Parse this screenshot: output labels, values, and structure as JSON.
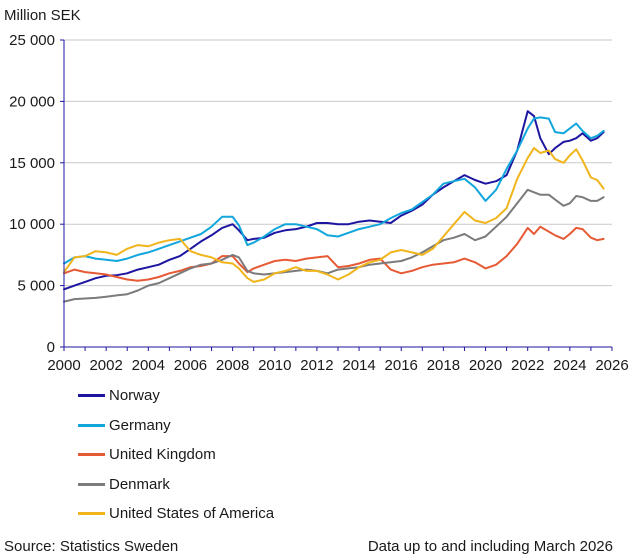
{
  "chart_data": {
    "type": "line",
    "unit_label": "Million SEK",
    "xlim": [
      2000,
      2026
    ],
    "ylim": [
      0,
      25000
    ],
    "x_ticks": [
      2000,
      2002,
      2004,
      2006,
      2008,
      2010,
      2012,
      2014,
      2016,
      2018,
      2020,
      2022,
      2024,
      2026
    ],
    "y_ticks": [
      0,
      5000,
      10000,
      15000,
      20000,
      25000
    ],
    "y_tick_labels": [
      "0",
      "5 000",
      "10 000",
      "15 000",
      "20 000",
      "25 000"
    ],
    "grid": "horizontal",
    "legend_position": "bottom-left",
    "series": [
      {
        "name": "Norway",
        "color": "#1e15a0",
        "points": [
          [
            2000,
            4700
          ],
          [
            2000.5,
            5000
          ],
          [
            2001,
            5300
          ],
          [
            2001.5,
            5600
          ],
          [
            2002,
            5800
          ],
          [
            2002.5,
            5850
          ],
          [
            2003,
            6000
          ],
          [
            2003.5,
            6300
          ],
          [
            2004,
            6500
          ],
          [
            2004.5,
            6700
          ],
          [
            2005,
            7100
          ],
          [
            2005.5,
            7400
          ],
          [
            2006,
            8000
          ],
          [
            2006.5,
            8600
          ],
          [
            2007,
            9100
          ],
          [
            2007.5,
            9700
          ],
          [
            2008,
            10000
          ],
          [
            2008.3,
            9500
          ],
          [
            2008.7,
            8700
          ],
          [
            2009,
            8800
          ],
          [
            2009.5,
            8900
          ],
          [
            2010,
            9300
          ],
          [
            2010.5,
            9500
          ],
          [
            2011,
            9600
          ],
          [
            2011.5,
            9800
          ],
          [
            2012,
            10100
          ],
          [
            2012.5,
            10100
          ],
          [
            2013,
            10000
          ],
          [
            2013.5,
            10000
          ],
          [
            2014,
            10200
          ],
          [
            2014.5,
            10300
          ],
          [
            2015,
            10200
          ],
          [
            2015.5,
            10100
          ],
          [
            2016,
            10700
          ],
          [
            2016.5,
            11100
          ],
          [
            2017,
            11600
          ],
          [
            2017.5,
            12400
          ],
          [
            2018,
            13000
          ],
          [
            2018.5,
            13500
          ],
          [
            2019,
            14000
          ],
          [
            2019.5,
            13600
          ],
          [
            2020,
            13300
          ],
          [
            2020.5,
            13500
          ],
          [
            2021,
            14000
          ],
          [
            2021.5,
            16000
          ],
          [
            2022,
            19200
          ],
          [
            2022.3,
            18800
          ],
          [
            2022.6,
            17000
          ],
          [
            2023,
            15700
          ],
          [
            2023.3,
            16200
          ],
          [
            2023.7,
            16700
          ],
          [
            2024,
            16800
          ],
          [
            2024.3,
            17000
          ],
          [
            2024.6,
            17400
          ],
          [
            2025,
            16800
          ],
          [
            2025.3,
            17000
          ],
          [
            2025.6,
            17500
          ]
        ]
      },
      {
        "name": "Germany",
        "color": "#11a6dc",
        "points": [
          [
            2000,
            6800
          ],
          [
            2000.5,
            7300
          ],
          [
            2001,
            7400
          ],
          [
            2001.5,
            7200
          ],
          [
            2002,
            7100
          ],
          [
            2002.5,
            7000
          ],
          [
            2003,
            7200
          ],
          [
            2003.5,
            7500
          ],
          [
            2004,
            7700
          ],
          [
            2004.5,
            8000
          ],
          [
            2005,
            8300
          ],
          [
            2005.5,
            8600
          ],
          [
            2006,
            8900
          ],
          [
            2006.5,
            9200
          ],
          [
            2007,
            9800
          ],
          [
            2007.5,
            10600
          ],
          [
            2008,
            10600
          ],
          [
            2008.3,
            9900
          ],
          [
            2008.7,
            8300
          ],
          [
            2009,
            8500
          ],
          [
            2009.5,
            9000
          ],
          [
            2010,
            9600
          ],
          [
            2010.5,
            10000
          ],
          [
            2011,
            10000
          ],
          [
            2011.5,
            9800
          ],
          [
            2012,
            9600
          ],
          [
            2012.5,
            9100
          ],
          [
            2013,
            9000
          ],
          [
            2013.5,
            9300
          ],
          [
            2014,
            9600
          ],
          [
            2014.5,
            9800
          ],
          [
            2015,
            10000
          ],
          [
            2015.5,
            10500
          ],
          [
            2016,
            10900
          ],
          [
            2016.5,
            11200
          ],
          [
            2017,
            11800
          ],
          [
            2017.5,
            12400
          ],
          [
            2018,
            13300
          ],
          [
            2018.5,
            13500
          ],
          [
            2019,
            13700
          ],
          [
            2019.5,
            13000
          ],
          [
            2020,
            11900
          ],
          [
            2020.5,
            12800
          ],
          [
            2021,
            14500
          ],
          [
            2021.5,
            16000
          ],
          [
            2022,
            17800
          ],
          [
            2022.3,
            18600
          ],
          [
            2022.6,
            18700
          ],
          [
            2023,
            18600
          ],
          [
            2023.3,
            17500
          ],
          [
            2023.7,
            17400
          ],
          [
            2024,
            17800
          ],
          [
            2024.3,
            18200
          ],
          [
            2024.6,
            17600
          ],
          [
            2025,
            17000
          ],
          [
            2025.3,
            17200
          ],
          [
            2025.6,
            17600
          ]
        ]
      },
      {
        "name": "United Kingdom",
        "color": "#e65a35",
        "points": [
          [
            2000,
            6000
          ],
          [
            2000.5,
            6300
          ],
          [
            2001,
            6100
          ],
          [
            2001.5,
            6000
          ],
          [
            2002,
            5900
          ],
          [
            2002.5,
            5700
          ],
          [
            2003,
            5500
          ],
          [
            2003.5,
            5400
          ],
          [
            2004,
            5500
          ],
          [
            2004.5,
            5700
          ],
          [
            2005,
            6000
          ],
          [
            2005.5,
            6200
          ],
          [
            2006,
            6500
          ],
          [
            2006.5,
            6600
          ],
          [
            2007,
            6800
          ],
          [
            2007.5,
            7400
          ],
          [
            2008,
            7400
          ],
          [
            2008.3,
            6800
          ],
          [
            2008.7,
            6100
          ],
          [
            2009,
            6400
          ],
          [
            2009.5,
            6700
          ],
          [
            2010,
            7000
          ],
          [
            2010.5,
            7100
          ],
          [
            2011,
            7000
          ],
          [
            2011.5,
            7200
          ],
          [
            2012,
            7300
          ],
          [
            2012.5,
            7400
          ],
          [
            2013,
            6500
          ],
          [
            2013.5,
            6600
          ],
          [
            2014,
            6800
          ],
          [
            2014.5,
            7100
          ],
          [
            2015,
            7200
          ],
          [
            2015.5,
            6300
          ],
          [
            2016,
            6000
          ],
          [
            2016.5,
            6200
          ],
          [
            2017,
            6500
          ],
          [
            2017.5,
            6700
          ],
          [
            2018,
            6800
          ],
          [
            2018.5,
            6900
          ],
          [
            2019,
            7200
          ],
          [
            2019.5,
            6900
          ],
          [
            2020,
            6400
          ],
          [
            2020.5,
            6700
          ],
          [
            2021,
            7400
          ],
          [
            2021.5,
            8400
          ],
          [
            2022,
            9700
          ],
          [
            2022.3,
            9200
          ],
          [
            2022.6,
            9800
          ],
          [
            2023,
            9400
          ],
          [
            2023.3,
            9100
          ],
          [
            2023.7,
            8800
          ],
          [
            2024,
            9200
          ],
          [
            2024.3,
            9700
          ],
          [
            2024.6,
            9600
          ],
          [
            2025,
            8900
          ],
          [
            2025.3,
            8700
          ],
          [
            2025.6,
            8800
          ]
        ]
      },
      {
        "name": "Denmark",
        "color": "#7b7b7b",
        "points": [
          [
            2000,
            3700
          ],
          [
            2000.5,
            3900
          ],
          [
            2001,
            3950
          ],
          [
            2001.5,
            4000
          ],
          [
            2002,
            4100
          ],
          [
            2002.5,
            4200
          ],
          [
            2003,
            4300
          ],
          [
            2003.5,
            4600
          ],
          [
            2004,
            5000
          ],
          [
            2004.5,
            5200
          ],
          [
            2005,
            5600
          ],
          [
            2005.5,
            6000
          ],
          [
            2006,
            6400
          ],
          [
            2006.5,
            6700
          ],
          [
            2007,
            6800
          ],
          [
            2007.5,
            7100
          ],
          [
            2008,
            7500
          ],
          [
            2008.3,
            7300
          ],
          [
            2008.7,
            6200
          ],
          [
            2009,
            6000
          ],
          [
            2009.5,
            5900
          ],
          [
            2010,
            6000
          ],
          [
            2010.5,
            6100
          ],
          [
            2011,
            6200
          ],
          [
            2011.5,
            6300
          ],
          [
            2012,
            6200
          ],
          [
            2012.5,
            6000
          ],
          [
            2013,
            6300
          ],
          [
            2013.5,
            6400
          ],
          [
            2014,
            6500
          ],
          [
            2014.5,
            6700
          ],
          [
            2015,
            6800
          ],
          [
            2015.5,
            6900
          ],
          [
            2016,
            7000
          ],
          [
            2016.5,
            7300
          ],
          [
            2017,
            7700
          ],
          [
            2017.5,
            8200
          ],
          [
            2018,
            8700
          ],
          [
            2018.5,
            8900
          ],
          [
            2019,
            9200
          ],
          [
            2019.5,
            8700
          ],
          [
            2020,
            9000
          ],
          [
            2020.5,
            9800
          ],
          [
            2021,
            10600
          ],
          [
            2021.5,
            11700
          ],
          [
            2022,
            12800
          ],
          [
            2022.3,
            12600
          ],
          [
            2022.6,
            12400
          ],
          [
            2023,
            12400
          ],
          [
            2023.3,
            12000
          ],
          [
            2023.7,
            11500
          ],
          [
            2024,
            11700
          ],
          [
            2024.3,
            12300
          ],
          [
            2024.6,
            12200
          ],
          [
            2025,
            11900
          ],
          [
            2025.3,
            11900
          ],
          [
            2025.6,
            12200
          ]
        ]
      },
      {
        "name": "United States of America",
        "color": "#f1b51c",
        "points": [
          [
            2000,
            6100
          ],
          [
            2000.5,
            7300
          ],
          [
            2001,
            7400
          ],
          [
            2001.5,
            7800
          ],
          [
            2002,
            7700
          ],
          [
            2002.5,
            7500
          ],
          [
            2003,
            8000
          ],
          [
            2003.5,
            8300
          ],
          [
            2004,
            8200
          ],
          [
            2004.5,
            8500
          ],
          [
            2005,
            8700
          ],
          [
            2005.5,
            8800
          ],
          [
            2006,
            7800
          ],
          [
            2006.5,
            7500
          ],
          [
            2007,
            7300
          ],
          [
            2007.5,
            6900
          ],
          [
            2008,
            6800
          ],
          [
            2008.3,
            6400
          ],
          [
            2008.7,
            5600
          ],
          [
            2009,
            5300
          ],
          [
            2009.5,
            5500
          ],
          [
            2010,
            6000
          ],
          [
            2010.5,
            6200
          ],
          [
            2011,
            6500
          ],
          [
            2011.5,
            6200
          ],
          [
            2012,
            6200
          ],
          [
            2012.5,
            5900
          ],
          [
            2013,
            5500
          ],
          [
            2013.5,
            5900
          ],
          [
            2014,
            6500
          ],
          [
            2014.5,
            6900
          ],
          [
            2015,
            7100
          ],
          [
            2015.5,
            7700
          ],
          [
            2016,
            7900
          ],
          [
            2016.5,
            7700
          ],
          [
            2017,
            7500
          ],
          [
            2017.5,
            8000
          ],
          [
            2018,
            9000
          ],
          [
            2018.5,
            10000
          ],
          [
            2019,
            11000
          ],
          [
            2019.5,
            10300
          ],
          [
            2020,
            10100
          ],
          [
            2020.5,
            10500
          ],
          [
            2021,
            11300
          ],
          [
            2021.5,
            13700
          ],
          [
            2022,
            15400
          ],
          [
            2022.3,
            16200
          ],
          [
            2022.6,
            15800
          ],
          [
            2023,
            16000
          ],
          [
            2023.3,
            15300
          ],
          [
            2023.7,
            15000
          ],
          [
            2024,
            15600
          ],
          [
            2024.3,
            16100
          ],
          [
            2024.6,
            15200
          ],
          [
            2025,
            13800
          ],
          [
            2025.3,
            13600
          ],
          [
            2025.6,
            12900
          ]
        ]
      }
    ]
  },
  "footer": {
    "source": "Source: Statistics Sweden",
    "note": "Data up to and including March 2026"
  }
}
